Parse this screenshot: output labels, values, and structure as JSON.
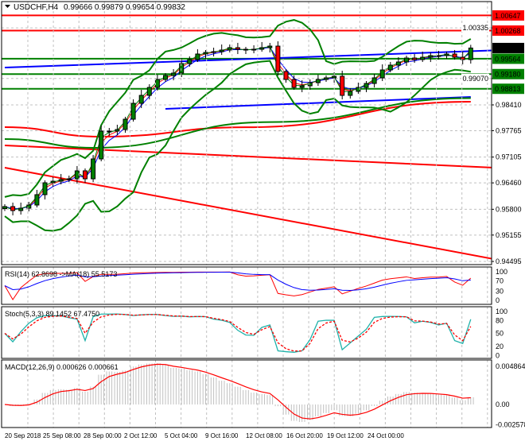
{
  "header": {
    "symbol": "USDCHF,H4",
    "ohlc": "0.99666 0.99879 0.99654 0.99832"
  },
  "rsi_panel": {
    "label": "RSI(14) 62.8698  ->MA(18) 55.5173",
    "ticks": [
      "100",
      "70",
      "30",
      "0"
    ]
  },
  "stoch_panel": {
    "label": "Stoch(5,3,3) 89.1452 67.4750",
    "ticks": [
      "100",
      "80",
      "50",
      "20",
      "0"
    ]
  },
  "macd_panel": {
    "label": "MACD(12,26,9) 0.000626 0.000661",
    "ticks": [
      "0.004864",
      "0.00",
      "-0.002578"
    ]
  },
  "chart_data": {
    "type": "candlestick",
    "title": "USDCHF,H4",
    "price_ticks": [
      "1.00335",
      "0.99070",
      "0.98410",
      "0.97765",
      "0.97105",
      "0.96460",
      "0.95800",
      "0.95155",
      "0.94495"
    ],
    "time_labels": [
      "20 Sep 2018",
      "25 Sep 08:00",
      "28 Sep 00:00",
      "2 Oct 12:00",
      "5 Oct 04:00",
      "9 Oct 16:00",
      "12 Oct 08:00",
      "16 Oct 20:00",
      "19 Oct 12:00",
      "24 Oct 00:00"
    ],
    "ylim": [
      0.944,
      1.0079
    ],
    "grid": true,
    "close": [
      0.95867,
      0.95767,
      0.95827,
      0.95906,
      0.96165,
      0.96463,
      0.96502,
      0.96542,
      0.96562,
      0.96761,
      0.96562,
      0.97059,
      0.97754,
      0.97754,
      0.97794,
      0.98052,
      0.9845,
      0.98648,
      0.98847,
      0.99046,
      0.99145,
      0.99205,
      0.99443,
      0.99543,
      0.99682,
      0.99722,
      0.99741,
      0.99781,
      0.99841,
      0.99801,
      0.99781,
      0.99801,
      0.99841,
      0.9988,
      0.99245,
      0.99046,
      0.98847,
      0.98887,
      0.98966,
      0.99046,
      0.99086,
      0.99125,
      0.98648,
      0.98748,
      0.98847,
      0.98946,
      0.99086,
      0.99284,
      0.99404,
      0.99483,
      0.99582,
      0.99543,
      0.99602,
      0.99642,
      0.99642,
      0.99682,
      0.99602,
      0.99543,
      0.99832
    ],
    "levels": [
      {
        "price": 1.00647,
        "label": "1.00647",
        "color": "#ff0000"
      },
      {
        "price": 1.00268,
        "label": "1.00268",
        "color": "#ff0000"
      },
      {
        "price": 0.99564,
        "label": "0.99564",
        "color": "#008000"
      },
      {
        "price": 0.9918,
        "label": "0.99180",
        "color": "#008000"
      },
      {
        "price": 0.98813,
        "label": "0.98813",
        "color": "#008000"
      }
    ],
    "current_price": {
      "price": 0.99832,
      "label": "0.99832",
      "color": "#000000"
    },
    "trendlines": [
      {
        "from": [
          0,
          0.99344
        ],
        "to": [
          65,
          0.99801
        ],
        "color": "#0000ff"
      },
      {
        "from": [
          20,
          0.98311
        ],
        "to": [
          58,
          0.98609
        ],
        "color": "#0000ff"
      },
      {
        "from": [
          0,
          0.97397
        ],
        "to": [
          61,
          0.9684
        ],
        "color": "#ff0000"
      },
      {
        "from": [
          0,
          0.9684
        ],
        "to": [
          65,
          0.944
        ],
        "color": "#ff0000"
      }
    ],
    "moving_averages": [
      {
        "points": [
          [
            0,
            0.97854
          ],
          [
            12,
            0.97615
          ],
          [
            30,
            0.9785
          ],
          [
            58,
            0.98489
          ]
        ],
        "color": "#ff0000"
      },
      {
        "points": [
          [
            0,
            0.97556
          ],
          [
            11,
            0.97337
          ],
          [
            33,
            0.9798
          ],
          [
            58,
            0.9858
          ]
        ],
        "color": "#008000"
      }
    ],
    "colors": {
      "bull": "#008000",
      "bear": "#ff0000",
      "bands": "#008000",
      "rsi": "#ff0000",
      "rsi_ma": "#0000ff",
      "stoch_main": "#20b2aa",
      "stoch_signal": "#ff0000",
      "macd_hist": "#c0c0c0",
      "macd_signal": "#ff0000"
    }
  }
}
